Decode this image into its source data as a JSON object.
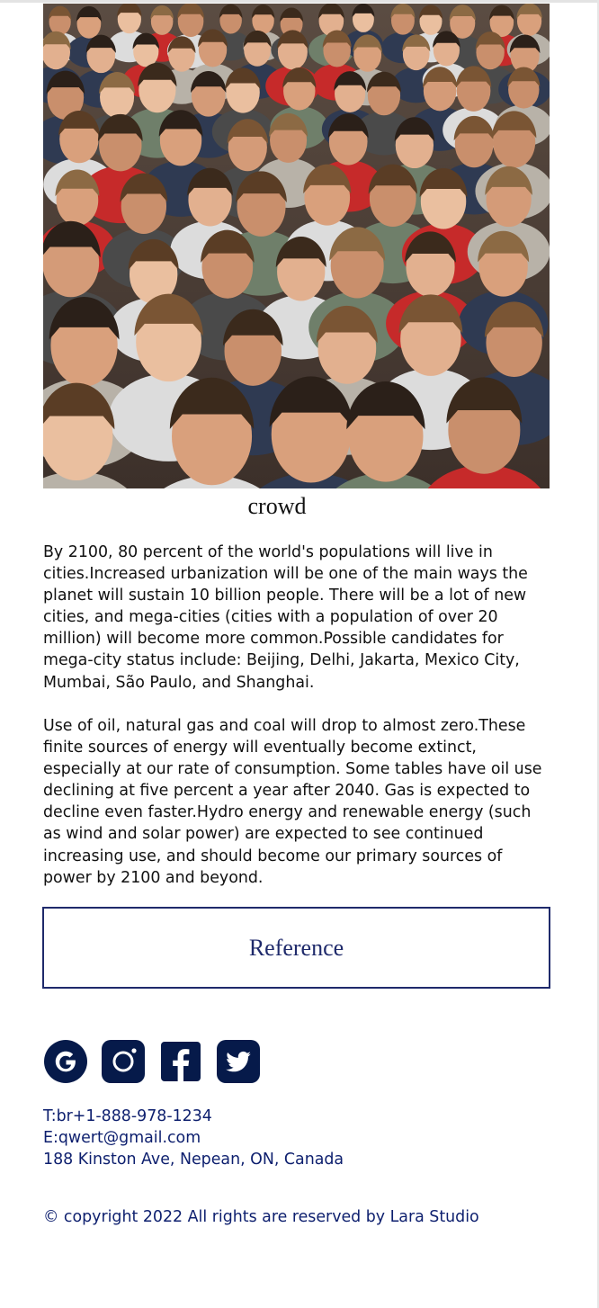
{
  "figure": {
    "image_alt": "crowd",
    "caption": "crowd"
  },
  "article": {
    "paragraph_1": "By 2100, 80 percent of the world's populations will live in cities.Increased urbanization will be one of the main ways the planet will sustain 10 billion people. There will be a lot of new cities, and mega-cities (cities with a population of over 20 million) will become more common.Possible candidates for mega-city status include: Beijing, Delhi, Jakarta, Mexico City, Mumbai, São Paulo, and Shanghai.",
    "paragraph_2": "Use of oil, natural gas and coal will drop to almost zero.These finite sources of energy will eventually become extinct, especially at our rate of consumption. Some tables have oil use declining at five percent a year after 2040. Gas is expected to decline even faster.Hydro energy and renewable energy (such as wind and solar power) are expected to see continued increasing use, and should become our primary sources of power by 2100 and beyond."
  },
  "reference_button": {
    "label": "Reference"
  },
  "footer": {
    "social": [
      {
        "icon": "google-icon"
      },
      {
        "icon": "instagram-icon"
      },
      {
        "icon": "facebook-icon"
      },
      {
        "icon": "twitter-icon"
      }
    ],
    "phone": "T:br+1-888-978-1234",
    "email": "E:qwert@gmail.com",
    "address": "188 Kinston Ave, Nepean, ON, Canada",
    "copyright": "© copyright 2022 All rights are reserved by Lara Studio"
  },
  "colors": {
    "navy": "#0d1f6e",
    "button_border": "#1f2a6b",
    "icon_fill": "#061a4a"
  }
}
